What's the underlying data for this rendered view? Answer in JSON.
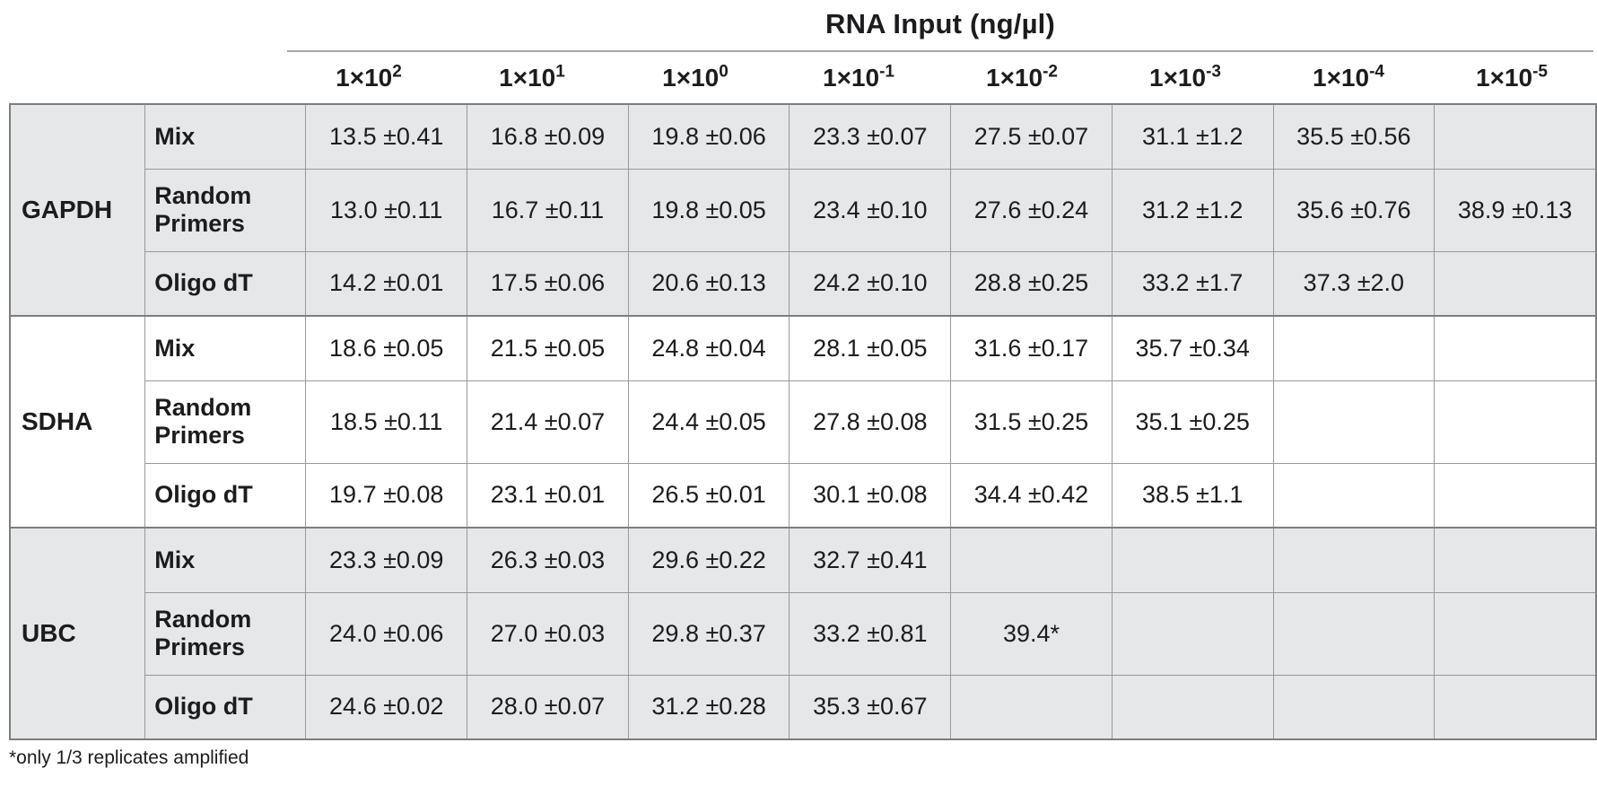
{
  "chart_data": {
    "type": "table",
    "title": "RNA Input (ng/µl)",
    "footnote": "*only 1/3 replicates amplified",
    "columns": [
      {
        "base": "1×10",
        "exp": "2",
        "label": "1×10^2"
      },
      {
        "base": "1×10",
        "exp": "1",
        "label": "1×10^1"
      },
      {
        "base": "1×10",
        "exp": "0",
        "label": "1×10^0"
      },
      {
        "base": "1×10",
        "exp": "-1",
        "label": "1×10^-1"
      },
      {
        "base": "1×10",
        "exp": "-2",
        "label": "1×10^-2"
      },
      {
        "base": "1×10",
        "exp": "-3",
        "label": "1×10^-3"
      },
      {
        "base": "1×10",
        "exp": "-4",
        "label": "1×10^-4"
      },
      {
        "base": "1×10",
        "exp": "-5",
        "label": "1×10^-5"
      }
    ],
    "row_groups": [
      {
        "gene": "GAPDH",
        "shaded": true,
        "rows": [
          {
            "label": "Mix",
            "values": [
              "13.5 ±0.41",
              "16.8 ±0.09",
              "19.8 ±0.06",
              "23.3 ±0.07",
              "27.5 ±0.07",
              "31.1 ±1.2",
              "35.5 ±0.56",
              ""
            ]
          },
          {
            "label": "Random Primers",
            "values": [
              "13.0 ±0.11",
              "16.7 ±0.11",
              "19.8 ±0.05",
              "23.4 ±0.10",
              "27.6 ±0.24",
              "31.2 ±1.2",
              "35.6 ±0.76",
              "38.9 ±0.13"
            ]
          },
          {
            "label": "Oligo dT",
            "values": [
              "14.2 ±0.01",
              "17.5 ±0.06",
              "20.6 ±0.13",
              "24.2 ±0.10",
              "28.8 ±0.25",
              "33.2 ±1.7",
              "37.3 ±2.0",
              ""
            ]
          }
        ]
      },
      {
        "gene": "SDHA",
        "shaded": false,
        "rows": [
          {
            "label": "Mix",
            "values": [
              "18.6 ±0.05",
              "21.5 ±0.05",
              "24.8 ±0.04",
              "28.1 ±0.05",
              "31.6 ±0.17",
              "35.7 ±0.34",
              "",
              ""
            ]
          },
          {
            "label": "Random Primers",
            "values": [
              "18.5 ±0.11",
              "21.4 ±0.07",
              "24.4 ±0.05",
              "27.8 ±0.08",
              "31.5 ±0.25",
              "35.1 ±0.25",
              "",
              ""
            ]
          },
          {
            "label": "Oligo dT",
            "values": [
              "19.7 ±0.08",
              "23.1 ±0.01",
              "26.5 ±0.01",
              "30.1 ±0.08",
              "34.4 ±0.42",
              "38.5 ±1.1",
              "",
              ""
            ]
          }
        ]
      },
      {
        "gene": "UBC",
        "shaded": true,
        "rows": [
          {
            "label": "Mix",
            "values": [
              "23.3 ±0.09",
              "26.3 ±0.03",
              "29.6 ±0.22",
              "32.7 ±0.41",
              "",
              "",
              "",
              ""
            ]
          },
          {
            "label": "Random Primers",
            "values": [
              "24.0 ±0.06",
              "27.0 ±0.03",
              "29.8 ±0.37",
              "33.2 ±0.81",
              "39.4*",
              "",
              "",
              ""
            ]
          },
          {
            "label": "Oligo dT",
            "values": [
              "24.6 ±0.02",
              "28.0 ±0.07",
              "31.2 ±0.28",
              "35.3 ±0.67",
              "",
              "",
              "",
              ""
            ]
          }
        ]
      }
    ],
    "colors": {
      "shaded_band": "#e6e7e9",
      "white_band": "#ffffff",
      "grid_line": "#98999b",
      "outer_border": "#7d7e80",
      "text": "#1c1c1e"
    },
    "layout": {
      "grid": "on",
      "header_group_spans_data_columns": true
    }
  }
}
